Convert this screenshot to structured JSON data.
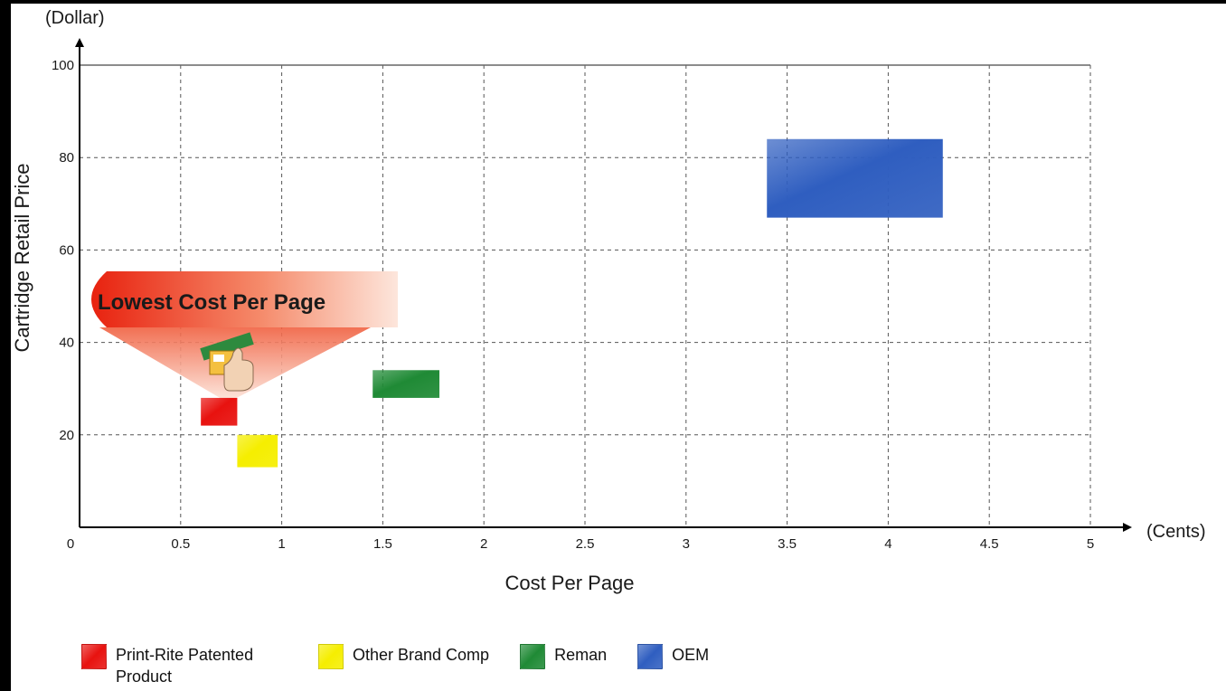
{
  "chart_data": {
    "type": "bar",
    "xlabel": "Cost Per Page",
    "ylabel": "Cartridge Retail Price",
    "x_unit": "(Cents)",
    "y_unit": "(Dollar)",
    "xlim": [
      0,
      5
    ],
    "ylim": [
      0,
      100
    ],
    "x_ticks": [
      "0",
      "0.5",
      "1",
      "1.5",
      "2",
      "2.5",
      "3",
      "3.5",
      "4",
      "4.5",
      "5"
    ],
    "y_ticks": [
      "20",
      "40",
      "60",
      "80",
      "100"
    ],
    "grid": true,
    "legend_position": "bottom-left",
    "callout": "Lowest Cost Per Page",
    "series": [
      {
        "name": "Print-Rite Patented Product",
        "x0": 0.6,
        "x1": 0.78,
        "y0": 22,
        "y1": 28,
        "color": "#e8120f"
      },
      {
        "name": "Other Brand Comp",
        "x0": 0.78,
        "x1": 0.98,
        "y0": 13,
        "y1": 20,
        "color": "#f5ee00"
      },
      {
        "name": "Reman",
        "x0": 1.45,
        "x1": 1.78,
        "y0": 28,
        "y1": 34,
        "color": "#1f8a35"
      },
      {
        "name": "OEM",
        "x0": 3.4,
        "x1": 4.27,
        "y0": 67,
        "y1": 84,
        "color": "#2f5ec0"
      }
    ],
    "legend": [
      {
        "label_line1": "Print-Rite Patented",
        "label_line2": "Product",
        "color": "#e8120f"
      },
      {
        "label_line1": "Other Brand Comp",
        "label_line2": "",
        "color": "#f5ee00"
      },
      {
        "label_line1": "Reman",
        "label_line2": "",
        "color": "#1f8a35"
      },
      {
        "label_line1": "OEM",
        "label_line2": "",
        "color": "#2f5ec0"
      }
    ]
  }
}
